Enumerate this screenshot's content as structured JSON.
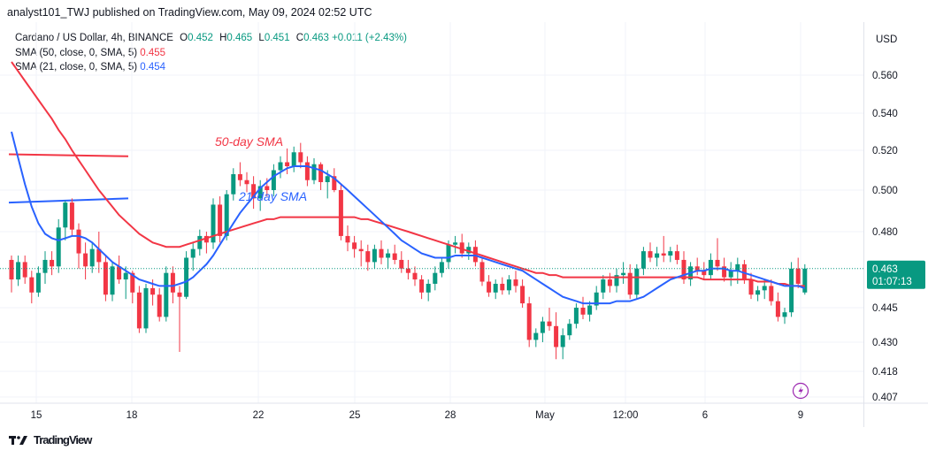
{
  "header": {
    "published": "analyst101_TWJ published on TradingView.com, May 09, 2024 02:52 UTC"
  },
  "legend": {
    "symbol": "Cardano / US Dollar, 4h, BINANCE",
    "o_label": "O",
    "o": "0.452",
    "h_label": "H",
    "h": "0.465",
    "l_label": "L",
    "l": "0.451",
    "c_label": "C",
    "c": "0.463",
    "change": "+0.011 (+2.43%)",
    "sma50_label": "SMA (50, close, 0, SMA, 5)",
    "sma50_value": "0.455",
    "sma21_label": "SMA (21, close, 0, SMA, 5)",
    "sma21_value": "0.454"
  },
  "annotations": {
    "sma50_text": "50-day SMA",
    "sma21_text": "21-day SMA"
  },
  "price_axis": {
    "currency": "USD",
    "last_price": "0.463",
    "countdown": "01:07:13"
  },
  "footer": {
    "brand": "TradingView"
  },
  "colors": {
    "up": "#089981",
    "down": "#f23645",
    "sma50": "#f23645",
    "sma21": "#2962ff",
    "grid": "#f0f3fa"
  },
  "chart_data": {
    "type": "candlestick",
    "timeframe": "4h",
    "y_ticks": [
      "0.560",
      "0.540",
      "0.520",
      "0.500",
      "0.480",
      "0.445",
      "0.430",
      "0.418",
      "0.407"
    ],
    "x_ticks": [
      "15",
      "18",
      "22",
      "25",
      "28",
      "May",
      "12:00",
      "6",
      "9"
    ],
    "candles": [
      [
        0.467,
        0.469,
        0.452,
        0.458
      ],
      [
        0.458,
        0.469,
        0.455,
        0.466
      ],
      [
        0.466,
        0.469,
        0.456,
        0.459
      ],
      [
        0.459,
        0.462,
        0.447,
        0.452
      ],
      [
        0.452,
        0.464,
        0.45,
        0.461
      ],
      [
        0.461,
        0.471,
        0.456,
        0.467
      ],
      [
        0.467,
        0.471,
        0.46,
        0.464
      ],
      [
        0.464,
        0.486,
        0.461,
        0.482
      ],
      [
        0.482,
        0.495,
        0.476,
        0.494
      ],
      [
        0.494,
        0.496,
        0.478,
        0.481
      ],
      [
        0.481,
        0.484,
        0.463,
        0.47
      ],
      [
        0.47,
        0.475,
        0.458,
        0.464
      ],
      [
        0.464,
        0.475,
        0.461,
        0.472
      ],
      [
        0.472,
        0.48,
        0.461,
        0.466
      ],
      [
        0.466,
        0.469,
        0.448,
        0.451
      ],
      [
        0.451,
        0.466,
        0.448,
        0.464
      ],
      [
        0.464,
        0.469,
        0.456,
        0.458
      ],
      [
        0.458,
        0.464,
        0.449,
        0.461
      ],
      [
        0.461,
        0.462,
        0.447,
        0.452
      ],
      [
        0.452,
        0.455,
        0.434,
        0.436
      ],
      [
        0.436,
        0.456,
        0.434,
        0.454
      ],
      [
        0.454,
        0.458,
        0.446,
        0.451
      ],
      [
        0.451,
        0.454,
        0.439,
        0.441
      ],
      [
        0.441,
        0.464,
        0.439,
        0.461
      ],
      [
        0.461,
        0.464,
        0.447,
        0.452
      ],
      [
        0.452,
        0.455,
        0.426,
        0.45
      ],
      [
        0.45,
        0.471,
        0.449,
        0.468
      ],
      [
        0.468,
        0.475,
        0.462,
        0.472
      ],
      [
        0.472,
        0.481,
        0.469,
        0.478
      ],
      [
        0.478,
        0.48,
        0.47,
        0.475
      ],
      [
        0.475,
        0.496,
        0.472,
        0.493
      ],
      [
        0.493,
        0.497,
        0.475,
        0.478
      ],
      [
        0.478,
        0.5,
        0.476,
        0.498
      ],
      [
        0.498,
        0.511,
        0.495,
        0.508
      ],
      [
        0.508,
        0.514,
        0.502,
        0.505
      ],
      [
        0.505,
        0.509,
        0.499,
        0.503
      ],
      [
        0.503,
        0.507,
        0.491,
        0.496
      ],
      [
        0.496,
        0.505,
        0.49,
        0.502
      ],
      [
        0.502,
        0.506,
        0.497,
        0.5
      ],
      [
        0.5,
        0.513,
        0.497,
        0.51
      ],
      [
        0.51,
        0.517,
        0.506,
        0.514
      ],
      [
        0.514,
        0.521,
        0.508,
        0.512
      ],
      [
        0.512,
        0.522,
        0.509,
        0.519
      ],
      [
        0.519,
        0.524,
        0.511,
        0.514
      ],
      [
        0.514,
        0.517,
        0.502,
        0.505
      ],
      [
        0.505,
        0.516,
        0.503,
        0.513
      ],
      [
        0.513,
        0.514,
        0.5,
        0.504
      ],
      [
        0.504,
        0.51,
        0.496,
        0.507
      ],
      [
        0.507,
        0.511,
        0.499,
        0.5
      ],
      [
        0.5,
        0.503,
        0.476,
        0.478
      ],
      [
        0.478,
        0.483,
        0.471,
        0.475
      ],
      [
        0.475,
        0.478,
        0.468,
        0.472
      ],
      [
        0.472,
        0.476,
        0.464,
        0.471
      ],
      [
        0.471,
        0.474,
        0.462,
        0.466
      ],
      [
        0.466,
        0.474,
        0.463,
        0.472
      ],
      [
        0.472,
        0.476,
        0.465,
        0.468
      ],
      [
        0.468,
        0.472,
        0.463,
        0.47
      ],
      [
        0.47,
        0.474,
        0.465,
        0.467
      ],
      [
        0.467,
        0.471,
        0.461,
        0.463
      ],
      [
        0.463,
        0.467,
        0.458,
        0.461
      ],
      [
        0.461,
        0.464,
        0.455,
        0.458
      ],
      [
        0.458,
        0.46,
        0.449,
        0.452
      ],
      [
        0.452,
        0.458,
        0.448,
        0.456
      ],
      [
        0.456,
        0.464,
        0.453,
        0.461
      ],
      [
        0.461,
        0.468,
        0.459,
        0.466
      ],
      [
        0.466,
        0.476,
        0.463,
        0.474
      ],
      [
        0.474,
        0.478,
        0.47,
        0.475
      ],
      [
        0.475,
        0.479,
        0.468,
        0.47
      ],
      [
        0.47,
        0.475,
        0.467,
        0.473
      ],
      [
        0.473,
        0.476,
        0.464,
        0.466
      ],
      [
        0.466,
        0.468,
        0.455,
        0.457
      ],
      [
        0.457,
        0.46,
        0.45,
        0.452
      ],
      [
        0.452,
        0.458,
        0.449,
        0.456
      ],
      [
        0.456,
        0.459,
        0.451,
        0.453
      ],
      [
        0.453,
        0.46,
        0.451,
        0.458
      ],
      [
        0.458,
        0.462,
        0.452,
        0.455
      ],
      [
        0.455,
        0.458,
        0.445,
        0.447
      ],
      [
        0.447,
        0.45,
        0.428,
        0.431
      ],
      [
        0.431,
        0.436,
        0.428,
        0.434
      ],
      [
        0.434,
        0.441,
        0.43,
        0.439
      ],
      [
        0.439,
        0.445,
        0.435,
        0.437
      ],
      [
        0.437,
        0.443,
        0.423,
        0.428
      ],
      [
        0.428,
        0.436,
        0.423,
        0.433
      ],
      [
        0.433,
        0.44,
        0.431,
        0.438
      ],
      [
        0.438,
        0.447,
        0.436,
        0.445
      ],
      [
        0.445,
        0.45,
        0.44,
        0.442
      ],
      [
        0.442,
        0.448,
        0.439,
        0.446
      ],
      [
        0.446,
        0.455,
        0.444,
        0.452
      ],
      [
        0.452,
        0.46,
        0.449,
        0.458
      ],
      [
        0.458,
        0.461,
        0.452,
        0.455
      ],
      [
        0.455,
        0.463,
        0.452,
        0.46
      ],
      [
        0.46,
        0.466,
        0.456,
        0.461
      ],
      [
        0.461,
        0.465,
        0.449,
        0.451
      ],
      [
        0.451,
        0.465,
        0.449,
        0.463
      ],
      [
        0.463,
        0.473,
        0.46,
        0.471
      ],
      [
        0.471,
        0.475,
        0.466,
        0.468
      ],
      [
        0.468,
        0.473,
        0.464,
        0.47
      ],
      [
        0.47,
        0.478,
        0.466,
        0.469
      ],
      [
        0.469,
        0.473,
        0.466,
        0.471
      ],
      [
        0.471,
        0.474,
        0.465,
        0.467
      ],
      [
        0.467,
        0.471,
        0.456,
        0.458
      ],
      [
        0.458,
        0.466,
        0.455,
        0.464
      ],
      [
        0.464,
        0.468,
        0.46,
        0.462
      ],
      [
        0.462,
        0.466,
        0.458,
        0.46
      ],
      [
        0.46,
        0.47,
        0.458,
        0.467
      ],
      [
        0.467,
        0.477,
        0.462,
        0.464
      ],
      [
        0.464,
        0.468,
        0.457,
        0.459
      ],
      [
        0.459,
        0.466,
        0.455,
        0.462
      ],
      [
        0.462,
        0.468,
        0.456,
        0.465
      ],
      [
        0.465,
        0.467,
        0.456,
        0.458
      ],
      [
        0.458,
        0.461,
        0.449,
        0.451
      ],
      [
        0.451,
        0.455,
        0.448,
        0.453
      ],
      [
        0.453,
        0.458,
        0.449,
        0.455
      ],
      [
        0.455,
        0.458,
        0.446,
        0.448
      ],
      [
        0.448,
        0.452,
        0.439,
        0.441
      ],
      [
        0.441,
        0.445,
        0.438,
        0.443
      ],
      [
        0.443,
        0.466,
        0.441,
        0.463
      ],
      [
        0.463,
        0.468,
        0.454,
        0.456
      ],
      [
        0.452,
        0.465,
        0.451,
        0.463
      ]
    ],
    "sma21": [
      0.53,
      0.516,
      0.503,
      0.492,
      0.484,
      0.479,
      0.477,
      0.476,
      0.477,
      0.478,
      0.478,
      0.477,
      0.475,
      0.472,
      0.469,
      0.466,
      0.464,
      0.462,
      0.46,
      0.458,
      0.457,
      0.456,
      0.455,
      0.455,
      0.455,
      0.456,
      0.457,
      0.459,
      0.462,
      0.465,
      0.469,
      0.474,
      0.479,
      0.484,
      0.489,
      0.493,
      0.497,
      0.501,
      0.504,
      0.507,
      0.509,
      0.511,
      0.512,
      0.512,
      0.512,
      0.511,
      0.51,
      0.508,
      0.506,
      0.503,
      0.5,
      0.497,
      0.494,
      0.491,
      0.488,
      0.485,
      0.482,
      0.479,
      0.476,
      0.474,
      0.472,
      0.47,
      0.469,
      0.468,
      0.468,
      0.468,
      0.469,
      0.469,
      0.469,
      0.469,
      0.468,
      0.467,
      0.466,
      0.465,
      0.464,
      0.463,
      0.462,
      0.46,
      0.458,
      0.456,
      0.454,
      0.452,
      0.45,
      0.449,
      0.448,
      0.447,
      0.447,
      0.447,
      0.447,
      0.447,
      0.448,
      0.448,
      0.448,
      0.449,
      0.45,
      0.452,
      0.454,
      0.456,
      0.458,
      0.459,
      0.46,
      0.461,
      0.462,
      0.462,
      0.463,
      0.463,
      0.463,
      0.462,
      0.462,
      0.461,
      0.46,
      0.459,
      0.458,
      0.457,
      0.456,
      0.455,
      0.455,
      0.455,
      0.454
    ],
    "sma50": [
      0.567,
      0.562,
      0.557,
      0.552,
      0.547,
      0.542,
      0.537,
      0.531,
      0.526,
      0.52,
      0.515,
      0.51,
      0.505,
      0.5,
      0.496,
      0.492,
      0.488,
      0.485,
      0.482,
      0.479,
      0.477,
      0.475,
      0.474,
      0.473,
      0.473,
      0.473,
      0.474,
      0.475,
      0.476,
      0.477,
      0.478,
      0.479,
      0.48,
      0.481,
      0.482,
      0.483,
      0.484,
      0.485,
      0.486,
      0.486,
      0.487,
      0.487,
      0.487,
      0.487,
      0.487,
      0.487,
      0.487,
      0.487,
      0.487,
      0.487,
      0.487,
      0.487,
      0.486,
      0.486,
      0.485,
      0.484,
      0.483,
      0.482,
      0.481,
      0.48,
      0.479,
      0.478,
      0.477,
      0.476,
      0.475,
      0.474,
      0.473,
      0.472,
      0.471,
      0.47,
      0.469,
      0.468,
      0.467,
      0.466,
      0.465,
      0.464,
      0.463,
      0.462,
      0.461,
      0.461,
      0.46,
      0.46,
      0.459,
      0.459,
      0.459,
      0.459,
      0.459,
      0.459,
      0.459,
      0.459,
      0.459,
      0.459,
      0.459,
      0.459,
      0.459,
      0.459,
      0.459,
      0.459,
      0.459,
      0.459,
      0.459,
      0.459,
      0.459,
      0.458,
      0.458,
      0.458,
      0.458,
      0.458,
      0.458,
      0.458,
      0.458,
      0.457,
      0.457,
      0.457,
      0.456,
      0.456,
      0.455,
      0.455,
      0.455
    ],
    "hlines": [
      {
        "name": "red-hline",
        "color": "#f23645",
        "from": 0.518,
        "to": 0.517
      },
      {
        "name": "blue-hline",
        "color": "#2962ff",
        "from": 0.494,
        "to": 0.496
      }
    ]
  }
}
